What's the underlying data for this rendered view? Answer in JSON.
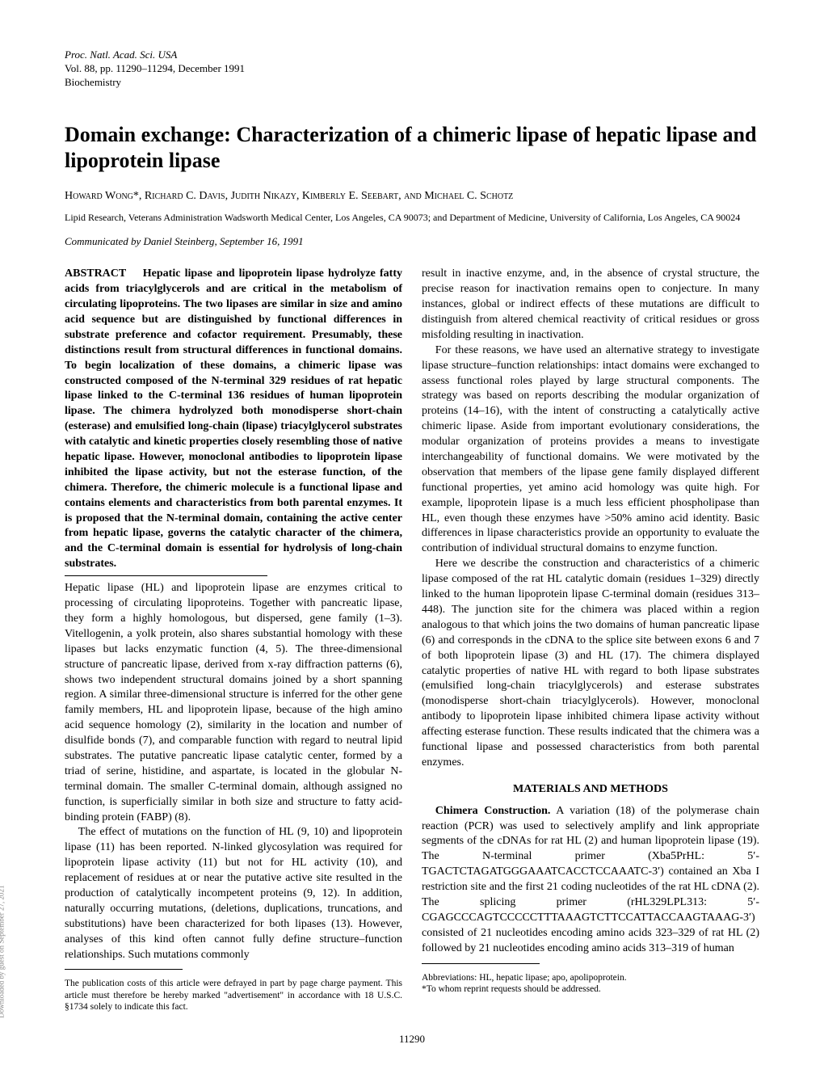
{
  "meta": {
    "journal": "Proc. Natl. Acad. Sci. USA",
    "volumeLine": "Vol. 88, pp. 11290–11294, December 1991",
    "section": "Biochemistry"
  },
  "title": "Domain exchange: Characterization of a chimeric lipase of hepatic lipase and lipoprotein lipase",
  "authors": "Howard Wong*, Richard C. Davis, Judith Nikazy, Kimberly E. Seebart, and Michael C. Schotz",
  "affiliation": "Lipid Research, Veterans Administration Wadsworth Medical Center, Los Angeles, CA 90073; and Department of Medicine, University of California, Los Angeles, CA 90024",
  "communicated": "Communicated by Daniel Steinberg, September 16, 1991",
  "abstractLabel": "ABSTRACT",
  "abstractText": "Hepatic lipase and lipoprotein lipase hydrolyze fatty acids from triacylglycerols and are critical in the metabolism of circulating lipoproteins. The two lipases are similar in size and amino acid sequence but are distinguished by functional differences in substrate preference and cofactor requirement. Presumably, these distinctions result from structural differences in functional domains. To begin localization of these domains, a chimeric lipase was constructed composed of the N-terminal 329 residues of rat hepatic lipase linked to the C-terminal 136 residues of human lipoprotein lipase. The chimera hydrolyzed both monodisperse short-chain (esterase) and emulsified long-chain (lipase) triacylglycerol substrates with catalytic and kinetic properties closely resembling those of native hepatic lipase. However, monoclonal antibodies to lipoprotein lipase inhibited the lipase activity, but not the esterase function, of the chimera. Therefore, the chimeric molecule is a functional lipase and contains elements and characteristics from both parental enzymes. It is proposed that the N-terminal domain, containing the active center from hepatic lipase, governs the catalytic character of the chimera, and the C-terminal domain is essential for hydrolysis of long-chain substrates.",
  "body": {
    "p1": "Hepatic lipase (HL) and lipoprotein lipase are enzymes critical to processing of circulating lipoproteins. Together with pancreatic lipase, they form a highly homologous, but dispersed, gene family (1–3). Vitellogenin, a yolk protein, also shares substantial homology with these lipases but lacks enzymatic function (4, 5). The three-dimensional structure of pancreatic lipase, derived from x-ray diffraction patterns (6), shows two independent structural domains joined by a short spanning region. A similar three-dimensional structure is inferred for the other gene family members, HL and lipoprotein lipase, because of the high amino acid sequence homology (2), similarity in the location and number of disulfide bonds (7), and comparable function with regard to neutral lipid substrates. The putative pancreatic lipase catalytic center, formed by a triad of serine, histidine, and aspartate, is located in the globular N-terminal domain. The smaller C-terminal domain, although assigned no function, is superficially similar in both size and structure to fatty acid-binding protein (FABP) (8).",
    "p2": "The effect of mutations on the function of HL (9, 10) and lipoprotein lipase (11) has been reported. N-linked glycosylation was required for lipoprotein lipase activity (11) but not for HL activity (10), and replacement of residues at or near the putative active site resulted in the production of catalytically incompetent proteins (9, 12). In addition, naturally occurring mutations, (deletions, duplications, truncations, and substitutions) have been characterized for both lipases (13). However, analyses of this kind often cannot fully define structure–function relationships. Such mutations commonly",
    "p3": "result in inactive enzyme, and, in the absence of crystal structure, the precise reason for inactivation remains open to conjecture. In many instances, global or indirect effects of these mutations are difficult to distinguish from altered chemical reactivity of critical residues or gross misfolding resulting in inactivation.",
    "p4": "For these reasons, we have used an alternative strategy to investigate lipase structure–function relationships: intact domains were exchanged to assess functional roles played by large structural components. The strategy was based on reports describing the modular organization of proteins (14–16), with the intent of constructing a catalytically active chimeric lipase. Aside from important evolutionary considerations, the modular organization of proteins provides a means to investigate interchangeability of functional domains. We were motivated by the observation that members of the lipase gene family displayed different functional properties, yet amino acid homology was quite high. For example, lipoprotein lipase is a much less efficient phospholipase than HL, even though these enzymes have >50% amino acid identity. Basic differences in lipase characteristics provide an opportunity to evaluate the contribution of individual structural domains to enzyme function.",
    "p5": "Here we describe the construction and characteristics of a chimeric lipase composed of the rat HL catalytic domain (residues 1–329) directly linked to the human lipoprotein lipase C-terminal domain (residues 313–448). The junction site for the chimera was placed within a region analogous to that which joins the two domains of human pancreatic lipase (6) and corresponds in the cDNA to the splice site between exons 6 and 7 of both lipoprotein lipase (3) and HL (17). The chimera displayed catalytic properties of native HL with regard to both lipase substrates (emulsified long-chain triacylglycerols) and esterase substrates (monodisperse short-chain triacylglycerols). However, monoclonal antibody to lipoprotein lipase inhibited chimera lipase activity without affecting esterase function. These results indicated that the chimera was a functional lipase and possessed characteristics from both parental enzymes.",
    "methodsHead": "MATERIALS AND METHODS",
    "p6a": "Chimera Construction.",
    "p6b": " A variation (18) of the polymerase chain reaction (PCR) was used to selectively amplify and link appropriate segments of the cDNAs for rat HL (2) and human lipoprotein lipase (19). The N-terminal primer (Xba5PrHL: 5′-TGACTCTAGATGGGAAATCACCTCCAAATC-3′) contained an Xba I restriction site and the first 21 coding nucleotides of the rat HL cDNA (2). The splicing primer (rHL329LPL313: 5′-CGAGCCCAGTCCCCCTTTAAAGTCTTCCATTACCAAGTAAAG-3′) consisted of 21 nucleotides encoding amino acids 323–329 of rat HL (2) followed by 21 nucleotides encoding amino acids 313–319 of human"
  },
  "footnotes": {
    "left": "The publication costs of this article were defrayed in part by page charge payment. This article must therefore be hereby marked \"advertisement\" in accordance with 18 U.S.C. §1734 solely to indicate this fact.",
    "right1": "Abbreviations: HL, hepatic lipase; apo, apolipoprotein.",
    "right2": "*To whom reprint requests should be addressed."
  },
  "pageNumber": "11290",
  "sideText": "Downloaded by guest on September 27, 2021"
}
